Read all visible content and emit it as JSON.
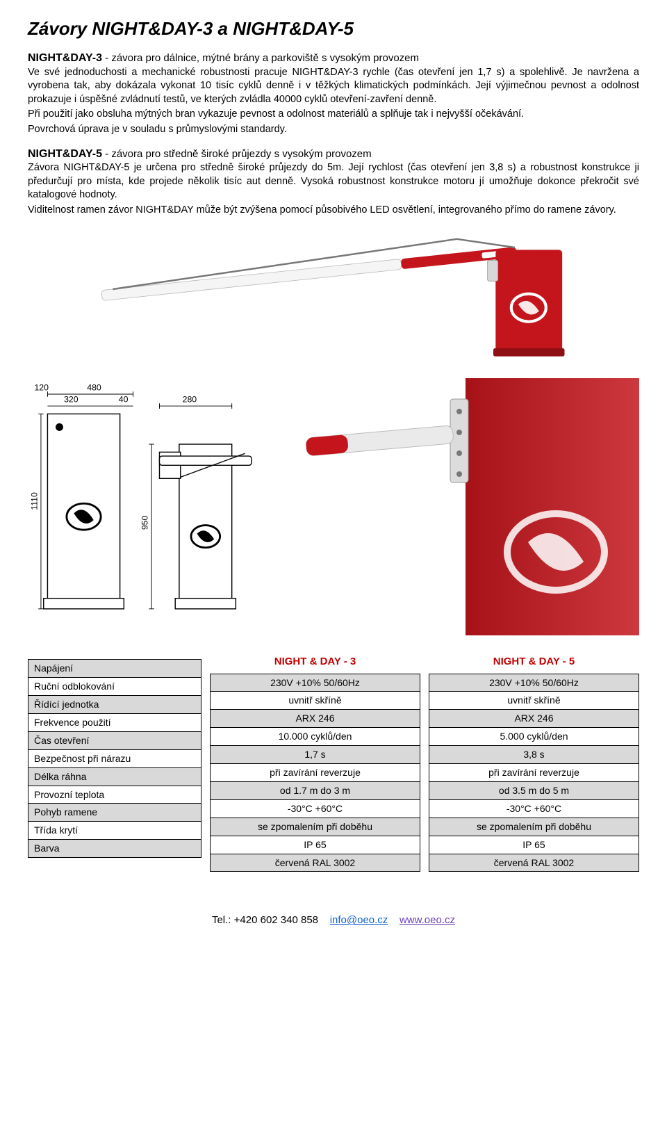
{
  "title": "Závory NIGHT&DAY-3 a NIGHT&DAY-5",
  "section1": {
    "heading_name": "NIGHT&DAY-3",
    "heading_tag": " - závora pro dálnice, mýtné brány a parkoviště s vysokým provozem",
    "p1": "Ve své jednoduchosti a mechanické robustnosti pracuje NIGHT&DAY-3 rychle (čas otevření jen 1,7 s) a spolehlivě. Je navržena a vyrobena tak, aby dokázala vykonat 10 tisíc cyklů denně i v těžkých klimatických podmínkách. Její výjimečnou pevnost a odolnost prokazuje i úspěšné zvládnutí testů, ve kterých zvládla 40000 cyklů otevření-zavření denně.",
    "p2": "Při použití jako obsluha mýtných bran vykazuje pevnost a odolnost materiálů a splňuje tak i nejvyšší očekávání.",
    "p3": "Povrchová úprava je v souladu s průmyslovými standardy."
  },
  "section2": {
    "heading_name": "NIGHT&DAY-5",
    "heading_tag": " - závora pro středně široké průjezdy s vysokým provozem",
    "p1": "Závora NIGHT&DAY-5 je určena pro středně široké průjezdy do 5m. Její rychlost (čas otevření jen 3,8 s) a robustnost konstrukce ji předurčují pro místa, kde projede několik tisíc aut denně. Vysoká robustnost konstrukce motoru jí umožňuje dokonce překročit své katalogové hodnoty.",
    "p2": "Viditelnost ramen závor NIGHT&DAY může být zvýšena pomocí působivého LED osvětlení, integrovaného přímo do ramene závory."
  },
  "drawing": {
    "dims_top": [
      "120",
      "480",
      "320",
      "40",
      "280"
    ],
    "dim_left": "1110",
    "dim_mid": "950"
  },
  "spec_table": {
    "header_left": "",
    "header_a": "NIGHT & DAY - 3",
    "header_b": "NIGHT & DAY - 5",
    "header_color": "#c00000",
    "rows": [
      {
        "label": "Napájení",
        "a": "230V +10%  50/60Hz",
        "b": "230V +10%  50/60Hz",
        "shade": true
      },
      {
        "label": "Ruční odblokování",
        "a": "uvnitř skříně",
        "b": "uvnitř skříně",
        "shade": false
      },
      {
        "label": "Řídící jednotka",
        "a": "ARX 246",
        "b": "ARX 246",
        "shade": true
      },
      {
        "label": "Frekvence použití",
        "a": "10.000 cyklů/den",
        "b": "5.000 cyklů/den",
        "shade": false
      },
      {
        "label": "Čas otevření",
        "a": "1,7 s",
        "b": "3,8 s",
        "shade": true
      },
      {
        "label": "Bezpečnost při nárazu",
        "a": "při zavírání reverzuje",
        "b": "při zavírání reverzuje",
        "shade": false
      },
      {
        "label": "Délka ráhna",
        "a": "od 1.7 m do 3 m",
        "b": "od 3.5 m do 5 m",
        "shade": true
      },
      {
        "label": "Provozní teplota",
        "a": "-30°C  +60°C",
        "b": "-30°C  +60°C",
        "shade": false
      },
      {
        "label": "Pohyb ramene",
        "a": "se zpomalením při doběhu",
        "b": "se zpomalením při doběhu",
        "shade": true
      },
      {
        "label": "Třída krytí",
        "a": "IP 65",
        "b": "IP 65",
        "shade": false
      },
      {
        "label": "Barva",
        "a": "červená RAL 3002",
        "b": "červená RAL 3002",
        "shade": true
      }
    ]
  },
  "footer": {
    "tel_label": "Tel.: +420 602 340 858",
    "email": "info@oeo.cz",
    "web": "www.oeo.cz"
  },
  "colors": {
    "brand_red": "#c4151c",
    "shade": "#d9d9d9",
    "link_blue": "#0b5fd1",
    "link_purple": "#6a3fb5"
  }
}
